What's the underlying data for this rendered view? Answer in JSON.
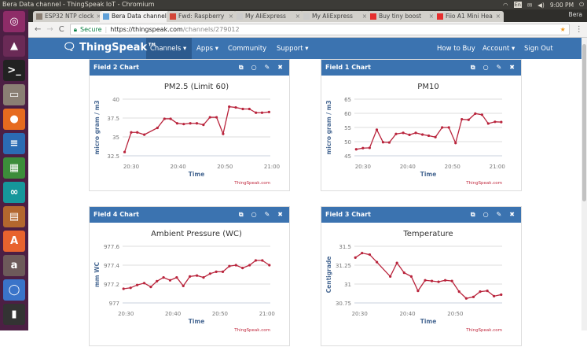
{
  "window": {
    "title": "Bera Data channel - ThingSpeak IoT - Chromium",
    "tray": {
      "lang": "En",
      "time": "9:00 PM"
    }
  },
  "launcher": [
    {
      "name": "ubuntu",
      "glyph": "◎",
      "color": "#8e2c68"
    },
    {
      "name": "vlc",
      "glyph": "▲",
      "color": "#6a2a56"
    },
    {
      "name": "terminal",
      "glyph": ">_",
      "color": "#222"
    },
    {
      "name": "files",
      "glyph": "▭",
      "color": "#8a7f74"
    },
    {
      "name": "firefox",
      "glyph": "●",
      "color": "#e66b1f"
    },
    {
      "name": "writer",
      "glyph": "≡",
      "color": "#2b6bb3"
    },
    {
      "name": "calc",
      "glyph": "▦",
      "color": "#3c8d3a"
    },
    {
      "name": "arduino",
      "glyph": "∞",
      "color": "#16979b"
    },
    {
      "name": "impress",
      "glyph": "▤",
      "color": "#b3672e"
    },
    {
      "name": "software-center",
      "glyph": "A",
      "color": "#e8632e"
    },
    {
      "name": "amazon",
      "glyph": "a",
      "color": "#6d5a5a"
    },
    {
      "name": "chromium",
      "glyph": "◯",
      "color": "#3a74c9"
    },
    {
      "name": "usb-drive",
      "glyph": "▮",
      "color": "#333"
    }
  ],
  "tabs": [
    {
      "label": "ESP32 NTP clock",
      "fav": "#8a7f74"
    },
    {
      "label": "Bera Data channel",
      "fav": "#5fa0d8",
      "active": true
    },
    {
      "label": "Fwd: Raspberry",
      "fav": "#d44638"
    },
    {
      "label": "My AliExpress",
      "fav": "#ccc"
    },
    {
      "label": "My AliExpress",
      "fav": "#ccc"
    },
    {
      "label": "Buy tiny boost",
      "fav": "#e62e2e"
    },
    {
      "label": "Fiio A1 Mini Hea",
      "fav": "#e62e2e"
    }
  ],
  "profile": "Bera",
  "address": {
    "secure": "Secure",
    "host": "https://thingspeak.com",
    "path": "/channels/279012"
  },
  "nav": {
    "brand": "ThingSpeak™",
    "items": [
      "Channels ▾",
      "Apps ▾",
      "Community",
      "Support ▾"
    ],
    "right": [
      "How to Buy",
      "Account ▾",
      "Sign Out"
    ]
  },
  "colors": {
    "nav": "#3b73b0",
    "line": "#b9243c"
  },
  "cards": [
    {
      "header": "Field 2 Chart"
    },
    {
      "header": "Field 1 Chart"
    },
    {
      "header": "Field 4 Chart"
    },
    {
      "header": "Field 3 Chart"
    }
  ],
  "card_icons": [
    "⧉",
    "○",
    "✎",
    "✖"
  ],
  "chart_data": [
    {
      "type": "line",
      "title": "PM2.5 (Limit 60)",
      "xlabel": "Time",
      "ylabel": "micro gram / m3",
      "credit": "ThingSpeak.com",
      "ylim": [
        32.5,
        40
      ],
      "yticks": [
        "32.5",
        "35",
        "37.5",
        "40"
      ],
      "xlim": [
        "20:28:10",
        "20:59:40"
      ],
      "xticks": [
        "20:30",
        "20:40",
        "20:50",
        "21:00"
      ],
      "grid": true,
      "x": [
        "20:28:36",
        "20:30:00",
        "20:31:18",
        "20:32:48",
        "20:35:36",
        "20:37:06",
        "20:38:24",
        "20:39:48",
        "20:41:12",
        "20:42:36",
        "20:44:00",
        "20:45:24",
        "20:46:48",
        "20:48:12",
        "20:49:36",
        "20:50:54",
        "20:52:18",
        "20:53:48",
        "20:55:12",
        "20:56:36",
        "20:57:54",
        "20:59:24"
      ],
      "y": [
        33.0,
        35.6,
        35.6,
        35.3,
        36.2,
        37.4,
        37.4,
        36.8,
        36.7,
        36.8,
        36.8,
        36.6,
        37.6,
        37.6,
        35.4,
        39.0,
        38.9,
        38.7,
        38.7,
        38.2,
        38.2,
        38.3
      ]
    },
    {
      "type": "line",
      "title": "PM10",
      "xlabel": "Time",
      "ylabel": "micro gram / m3",
      "credit": "ThingSpeak.com",
      "ylim": [
        45,
        65
      ],
      "yticks": [
        "45",
        "50",
        "55",
        "60",
        "65"
      ],
      "xlim": [
        "20:28:06",
        "21:01:06"
      ],
      "xticks": [
        "20:30",
        "20:40",
        "20:50",
        "21:00"
      ],
      "grid": true,
      "x": [
        "20:28:30",
        "20:30:00",
        "20:31:30",
        "20:33:06",
        "20:34:30",
        "20:35:54",
        "20:37:24",
        "20:39:00",
        "20:40:24",
        "20:41:48",
        "20:43:18",
        "20:44:42",
        "20:46:12",
        "20:47:42",
        "20:49:12",
        "20:50:42",
        "20:52:06",
        "20:53:36",
        "20:55:06",
        "20:56:36",
        "20:58:00",
        "20:59:30",
        "21:00:54"
      ],
      "y": [
        47.3,
        47.7,
        47.8,
        54.2,
        49.8,
        49.7,
        52.7,
        53.1,
        52.4,
        53.1,
        52.5,
        52.1,
        51.6,
        55.0,
        55.0,
        49.5,
        57.9,
        57.7,
        59.9,
        59.5,
        56.4,
        57.0,
        56.9
      ]
    },
    {
      "type": "line",
      "title": "Ambient Pressure (WC)",
      "xlabel": "Time",
      "ylabel": "mm WC",
      "credit": "ThingSpeak.com",
      "ylim": [
        977,
        977.6
      ],
      "yticks": [
        "977",
        "977.2",
        "977.4",
        "977.6"
      ],
      "xlim": [
        "20:29:18",
        "21:00:42"
      ],
      "xticks": [
        "20:30",
        "20:40",
        "20:50",
        "21:00"
      ],
      "grid": true,
      "x": [
        "20:29:30",
        "20:31:00",
        "20:32:24",
        "20:33:54",
        "20:35:18",
        "20:36:36",
        "20:38:00",
        "20:39:24",
        "20:40:48",
        "20:42:12",
        "20:43:36",
        "20:45:06",
        "20:46:30",
        "20:47:54",
        "20:49:12",
        "20:50:36",
        "20:52:00",
        "20:53:24",
        "20:54:48",
        "20:56:18",
        "20:57:36",
        "20:59:00",
        "21:00:30"
      ],
      "y": [
        977.15,
        977.16,
        977.19,
        977.21,
        977.17,
        977.23,
        977.27,
        977.24,
        977.27,
        977.18,
        977.28,
        977.29,
        977.27,
        977.31,
        977.33,
        977.33,
        977.39,
        977.4,
        977.37,
        977.4,
        977.45,
        977.45,
        977.4
      ]
    },
    {
      "type": "line",
      "title": "Temperature",
      "xlabel": "Time",
      "ylabel": "Centigrade",
      "credit": "ThingSpeak.com",
      "ylim": [
        30.75,
        31.5
      ],
      "yticks": [
        "30.75",
        "31",
        "31.25",
        "31.5"
      ],
      "xlim": [
        "20:28:54",
        "20:59:48"
      ],
      "xticks": [
        "20:30",
        "20:40",
        "20:50"
      ],
      "grid": true,
      "x": [
        "20:29:06",
        "20:30:30",
        "20:32:06",
        "20:33:36",
        "20:36:24",
        "20:37:48",
        "20:39:18",
        "20:40:48",
        "20:42:12",
        "20:43:42",
        "20:45:06",
        "20:46:30",
        "20:47:54",
        "20:49:18",
        "20:50:48",
        "20:52:18",
        "20:53:48",
        "20:55:12",
        "20:56:42",
        "20:58:06",
        "20:59:36"
      ],
      "y": [
        31.35,
        31.41,
        31.39,
        31.29,
        31.1,
        31.28,
        31.15,
        31.1,
        30.91,
        31.05,
        31.04,
        31.03,
        31.05,
        31.04,
        30.9,
        30.81,
        30.83,
        30.9,
        30.91,
        30.84,
        30.86
      ]
    }
  ]
}
